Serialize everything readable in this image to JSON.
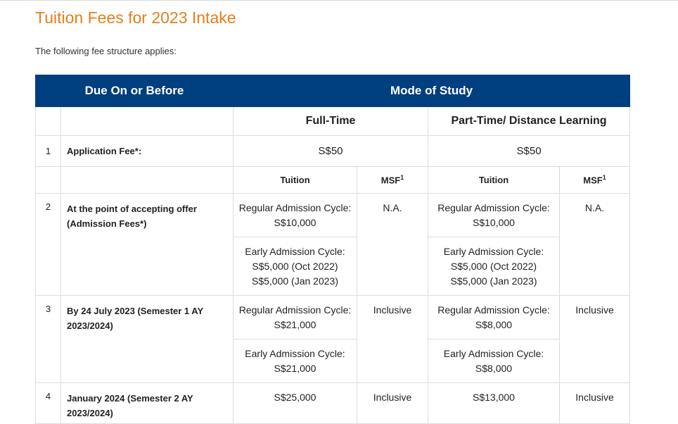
{
  "page": {
    "title": "Tuition Fees for 2023 Intake",
    "intro": "The following fee structure applies:"
  },
  "table": {
    "header": {
      "due": "Due On or Before",
      "mode": "Mode of Study"
    },
    "modes": {
      "full_time": "Full-Time",
      "part_time": "Part-Time/ Distance Learning"
    },
    "sub": {
      "tuition": "Tuition",
      "msf": "MSF",
      "msf_sup": "1"
    },
    "rows": [
      {
        "num": "1",
        "label": "Application Fee*:",
        "ft": "S$50",
        "pt": "S$50"
      },
      {
        "num": "2",
        "label": "At the point of accepting offer (Admission Fees*)",
        "ft_regular": [
          "Regular Admission Cycle:",
          "S$10,000"
        ],
        "ft_early": [
          "Early Admission Cycle:",
          "S$5,000 (Oct 2022)",
          "S$5,000 (Jan 2023)"
        ],
        "ft_msf": "N.A.",
        "pt_regular": [
          "Regular Admission Cycle:",
          "S$10,000"
        ],
        "pt_early": [
          "Early Admission Cycle:",
          "S$5,000 (Oct 2022)",
          "S$5,000 (Jan 2023)"
        ],
        "pt_msf": "N.A."
      },
      {
        "num": "3",
        "label": "By 24 July 2023 (Semester 1 AY 2023/2024)",
        "ft_regular": [
          "Regular Admission Cycle:",
          "S$21,000"
        ],
        "ft_early": [
          "Early Admission Cycle:",
          "S$21,000"
        ],
        "ft_msf": "Inclusive",
        "pt_regular": [
          "Regular Admission Cycle:",
          "S$8,000"
        ],
        "pt_early": [
          "Early Admission Cycle:",
          "S$8,000"
        ],
        "pt_msf": "Inclusive"
      },
      {
        "num": "4",
        "label": "January 2024 (Semester 2 AY 2023/2024)",
        "ft": "S$25,000",
        "ft_msf": "Inclusive",
        "pt": "S$13,000",
        "pt_msf": "Inclusive"
      }
    ]
  }
}
